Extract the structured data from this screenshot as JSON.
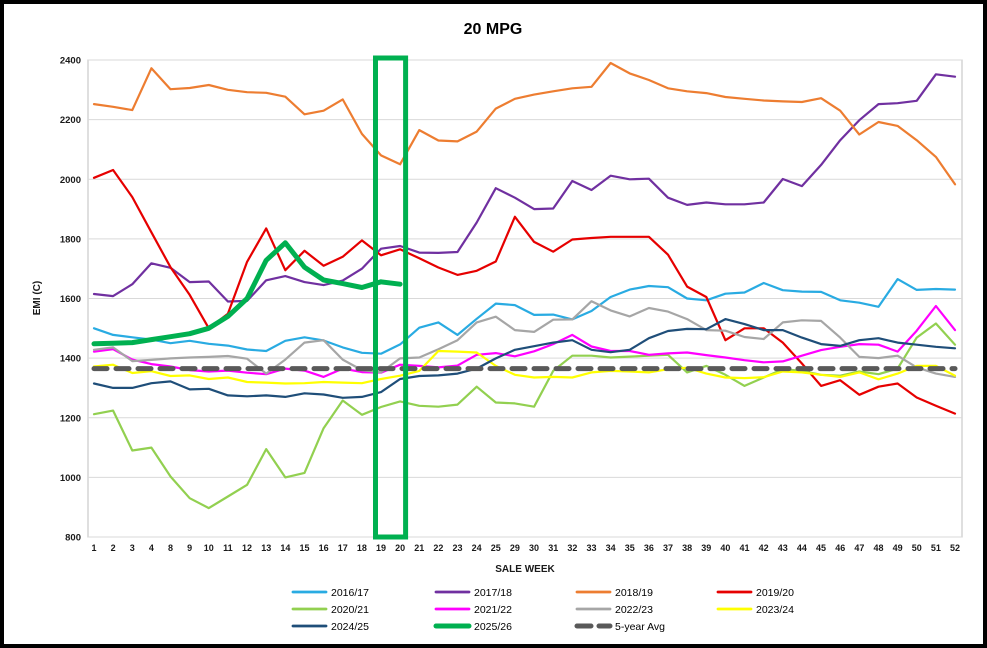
{
  "title": "20 MPG",
  "axes": {
    "x_title": "SALE WEEK",
    "y_title": "EMI (C)"
  },
  "highlight": {
    "weeks": [
      "19",
      "20"
    ],
    "color": "#00B050"
  },
  "colors": {
    "grid": "#D9D9D9",
    "plot_border": "#BFBFBF",
    "page_border": "#000000",
    "avg_line": "#595959",
    "highlight_green": "#00B050"
  },
  "chart_data": {
    "type": "line",
    "title": "20 MPG",
    "xlabel": "SALE WEEK",
    "ylabel": "EMI (C)",
    "ylim": [
      800,
      2400
    ],
    "ytick_step": 200,
    "grid": true,
    "legend_position": "bottom",
    "categories": [
      "1",
      "2",
      "3",
      "4",
      "8",
      "9",
      "10",
      "11",
      "12",
      "13",
      "14",
      "15",
      "16",
      "17",
      "18",
      "19",
      "20",
      "21",
      "22",
      "23",
      "24",
      "25",
      "29",
      "30",
      "31",
      "32",
      "33",
      "34",
      "35",
      "36",
      "37",
      "38",
      "39",
      "40",
      "41",
      "42",
      "43",
      "44",
      "45",
      "46",
      "47",
      "48",
      "49",
      "50",
      "51",
      "52"
    ],
    "annotations": [
      {
        "type": "rect",
        "x_from": "19",
        "x_to": "20",
        "color": "#00B050",
        "note": "highlight box over sale weeks 19-20, full plot height"
      }
    ],
    "series": [
      {
        "name": "2016/17",
        "color": "#29ABE2",
        "width": 2.2,
        "values": [
          1500,
          1478,
          1470,
          1462,
          1450,
          1458,
          1448,
          1442,
          1429,
          1424,
          1458,
          1470,
          1459,
          1436,
          1418,
          1415,
          1446,
          1502,
          1520,
          1478,
          1532,
          1583,
          1578,
          1545,
          1546,
          1530,
          1558,
          1605,
          1630,
          1642,
          1638,
          1600,
          1594,
          1616,
          1620,
          1652,
          1628,
          1623,
          1622,
          1594,
          1586,
          1572,
          1665,
          1629,
          1632,
          1630
        ]
      },
      {
        "name": "2017/18",
        "color": "#7030A0",
        "width": 2.2,
        "values": [
          1615,
          1608,
          1648,
          1718,
          1703,
          1655,
          1657,
          1590,
          1592,
          1661,
          1675,
          1655,
          1645,
          1660,
          1700,
          1767,
          1776,
          1754,
          1753,
          1756,
          1855,
          1970,
          1938,
          1900,
          1902,
          1994,
          1964,
          2012,
          2000,
          2002,
          1938,
          1914,
          1922,
          1916,
          1916,
          1922,
          2001,
          1977,
          2048,
          2131,
          2198,
          2252,
          2255,
          2263,
          2352,
          2344
        ]
      },
      {
        "name": "2018/19",
        "color": "#ED7D31",
        "width": 2.2,
        "values": [
          2252,
          2243,
          2232,
          2372,
          2302,
          2306,
          2316,
          2300,
          2292,
          2290,
          2277,
          2218,
          2230,
          2268,
          2152,
          2080,
          2050,
          2165,
          2130,
          2127,
          2160,
          2237,
          2270,
          2284,
          2295,
          2305,
          2310,
          2390,
          2355,
          2333,
          2305,
          2295,
          2289,
          2276,
          2270,
          2264,
          2261,
          2259,
          2272,
          2230,
          2150,
          2192,
          2179,
          2131,
          2075,
          1983
        ]
      },
      {
        "name": "2019/20",
        "color": "#E60000",
        "width": 2.2,
        "values": [
          2005,
          2031,
          1940,
          1822,
          1705,
          1612,
          1500,
          1549,
          1723,
          1835,
          1695,
          1760,
          1710,
          1740,
          1795,
          1745,
          1765,
          1735,
          1704,
          1679,
          1693,
          1724,
          1874,
          1790,
          1757,
          1798,
          1803,
          1807,
          1807,
          1807,
          1747,
          1640,
          1605,
          1460,
          1500,
          1500,
          1452,
          1382,
          1307,
          1326,
          1277,
          1304,
          1315,
          1268,
          1240,
          1214
        ]
      },
      {
        "name": "2020/21",
        "color": "#92D050",
        "width": 2.2,
        "values": [
          1212,
          1224,
          1090,
          1100,
          1003,
          930,
          897,
          936,
          975,
          1095,
          1000,
          1015,
          1165,
          1258,
          1210,
          1236,
          1255,
          1240,
          1237,
          1244,
          1304,
          1251,
          1248,
          1237,
          1357,
          1408,
          1408,
          1402,
          1405,
          1408,
          1411,
          1352,
          1374,
          1344,
          1307,
          1335,
          1363,
          1357,
          1344,
          1341,
          1355,
          1346,
          1365,
          1469,
          1516,
          1445
        ]
      },
      {
        "name": "2021/22",
        "color": "#FF00FF",
        "width": 2.2,
        "values": [
          1422,
          1430,
          1395,
          1380,
          1372,
          1360,
          1355,
          1358,
          1351,
          1346,
          1365,
          1358,
          1337,
          1365,
          1353,
          1351,
          1378,
          1374,
          1369,
          1375,
          1411,
          1417,
          1406,
          1423,
          1447,
          1478,
          1439,
          1424,
          1424,
          1411,
          1416,
          1419,
          1410,
          1402,
          1393,
          1386,
          1389,
          1408,
          1427,
          1438,
          1447,
          1445,
          1422,
          1492,
          1575,
          1494
        ]
      },
      {
        "name": "2022/23",
        "color": "#A6A6A6",
        "width": 2.2,
        "values": [
          1428,
          1436,
          1390,
          1394,
          1399,
          1402,
          1404,
          1407,
          1398,
          1348,
          1395,
          1452,
          1460,
          1395,
          1360,
          1352,
          1399,
          1402,
          1430,
          1460,
          1520,
          1539,
          1494,
          1488,
          1529,
          1530,
          1591,
          1560,
          1540,
          1568,
          1556,
          1531,
          1494,
          1492,
          1471,
          1464,
          1520,
          1527,
          1525,
          1469,
          1404,
          1400,
          1408,
          1369,
          1348,
          1337
        ]
      },
      {
        "name": "2023/24",
        "color": "#FFFF00",
        "width": 2.2,
        "values": [
          1372,
          1378,
          1350,
          1356,
          1340,
          1342,
          1330,
          1335,
          1320,
          1318,
          1315,
          1316,
          1320,
          1318,
          1316,
          1330,
          1341,
          1357,
          1424,
          1422,
          1419,
          1374,
          1344,
          1335,
          1337,
          1335,
          1352,
          1357,
          1355,
          1352,
          1363,
          1368,
          1348,
          1335,
          1333,
          1336,
          1355,
          1352,
          1344,
          1337,
          1352,
          1329,
          1348,
          1374,
          1374,
          1341
        ]
      },
      {
        "name": "2024/25",
        "color": "#1F4E79",
        "width": 2.2,
        "values": [
          1315,
          1300,
          1300,
          1316,
          1322,
          1295,
          1297,
          1275,
          1272,
          1275,
          1270,
          1282,
          1278,
          1267,
          1270,
          1286,
          1330,
          1340,
          1342,
          1348,
          1365,
          1399,
          1428,
          1440,
          1452,
          1460,
          1428,
          1420,
          1428,
          1467,
          1491,
          1498,
          1497,
          1531,
          1514,
          1494,
          1494,
          1469,
          1447,
          1441,
          1460,
          1467,
          1452,
          1445,
          1438,
          1433
        ]
      },
      {
        "name": "2025/26",
        "color": "#00B050",
        "width": 5,
        "values": [
          1448,
          1450,
          1452,
          1462,
          1472,
          1482,
          1500,
          1540,
          1600,
          1728,
          1787,
          1705,
          1662,
          1650,
          1637,
          1656,
          1648,
          null,
          null,
          null,
          null,
          null,
          null,
          null,
          null,
          null,
          null,
          null,
          null,
          null,
          null,
          null,
          null,
          null,
          null,
          null,
          null,
          null,
          null,
          null,
          null,
          null,
          null,
          null,
          null,
          null
        ]
      },
      {
        "name": "5-year Avg",
        "color": "#595959",
        "width": 5,
        "dash": "13 9",
        "values": [
          1365,
          1365,
          1365,
          1365,
          1365,
          1365,
          1365,
          1365,
          1365,
          1365,
          1365,
          1365,
          1365,
          1365,
          1365,
          1365,
          1365,
          1365,
          1365,
          1365,
          1365,
          1365,
          1365,
          1365,
          1365,
          1365,
          1365,
          1365,
          1365,
          1365,
          1365,
          1365,
          1365,
          1365,
          1365,
          1365,
          1365,
          1365,
          1365,
          1365,
          1365,
          1365,
          1365,
          1365,
          1365,
          1365
        ]
      }
    ]
  }
}
